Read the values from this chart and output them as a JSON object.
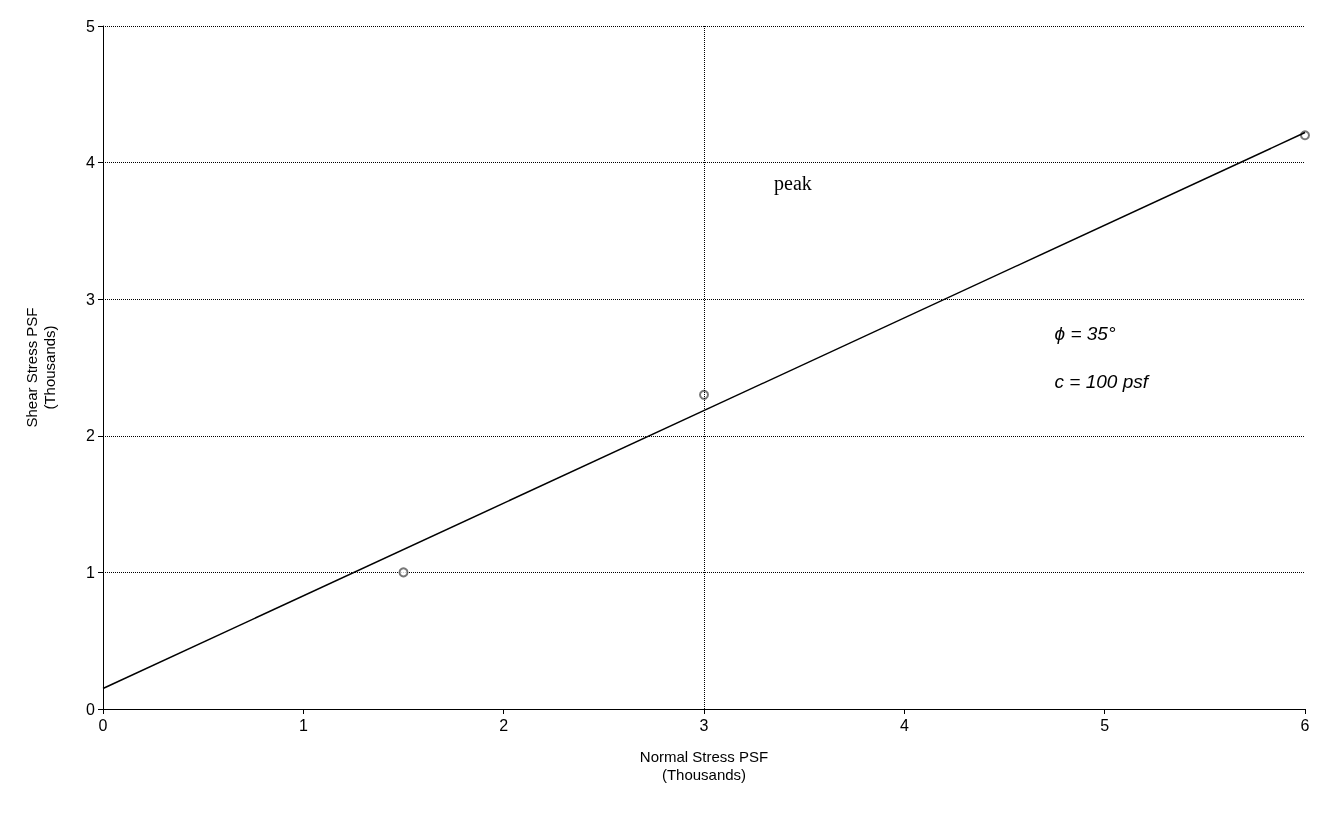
{
  "chart_data": {
    "type": "line",
    "xlabel": "Normal Stress PSF\n(Thousands)",
    "ylabel": "Shear Stress PSF\n(Thousands)",
    "series": [
      {
        "color": "#000000",
        "x": [
          0,
          6
        ],
        "values": [
          0.15,
          4.22
        ],
        "marker": "none"
      },
      {
        "type": "scatter",
        "color": "#555555",
        "x": [
          1.5,
          3,
          6
        ],
        "values": [
          1.0,
          2.3,
          4.2
        ],
        "marker": "circle"
      }
    ],
    "xlim": [
      0,
      6
    ],
    "xticks": [
      0,
      1,
      2,
      3,
      4,
      5,
      6
    ],
    "ylim": [
      0,
      5
    ],
    "yticks": [
      0,
      1,
      2,
      3,
      4,
      5
    ],
    "grid": "y",
    "line_style": "solid",
    "ref_lines": [
      {
        "axis": "x",
        "value": 3,
        "line_style": "dotted",
        "color": "#000000"
      }
    ],
    "annotations": [
      "peak",
      "ɸ = 35°",
      "c = 100 psf"
    ]
  }
}
